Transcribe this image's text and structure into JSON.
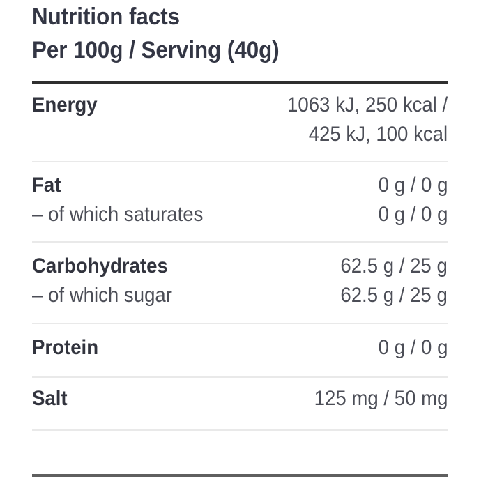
{
  "header": {
    "title": "Nutrition facts",
    "subtitle": "Per 100g / Serving (40g)"
  },
  "table": {
    "columns_note": "values formatted as per-100g / per-serving",
    "energy": {
      "label": "Energy",
      "value_line1": "1063 kJ, 250 kcal /",
      "value_line2": "425 kJ, 100 kcal"
    },
    "fat": {
      "label": "Fat",
      "value": "0 g / 0 g"
    },
    "saturates": {
      "label": "– of which saturates",
      "value": "0 g / 0 g"
    },
    "carbohydrates": {
      "label": "Carbohydrates",
      "value": "62.5 g / 25 g"
    },
    "sugar": {
      "label": "– of which sugar",
      "value": "62.5 g / 25 g"
    },
    "protein": {
      "label": "Protein",
      "value": "0 g / 0 g"
    },
    "salt": {
      "label": "Salt",
      "value": "125 mg / 50 mg"
    }
  },
  "colors": {
    "label_text": "#32343e",
    "value_text": "#4c4e57",
    "title_text": "#333644",
    "divider_light": "#e9e9e9",
    "divider_top": "#2f2f2f",
    "divider_bottom": "#5f5f5f"
  }
}
